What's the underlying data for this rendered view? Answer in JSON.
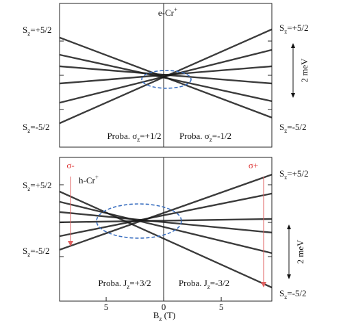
{
  "chart_data": [
    {
      "type": "line",
      "title": {
        "text": "e-Cr",
        "sup": "+"
      },
      "x": [
        -9.05,
        9.4
      ],
      "xlim": [
        -9.05,
        9.4
      ],
      "ylim": [
        -2.8,
        2.8
      ],
      "series": [
        {
          "color": "#1a1a1a",
          "values": [
            1.47,
            -1.65
          ]
        },
        {
          "color": "#1a1a1a",
          "values": [
            0.8,
            -1.01
          ]
        },
        {
          "color": "#1a1a1a",
          "values": [
            0.35,
            -0.32
          ]
        },
        {
          "color": "#1a1a1a",
          "values": [
            -0.32,
            0.35
          ]
        },
        {
          "color": "#1a1a1a",
          "values": [
            -1.07,
            0.99
          ]
        },
        {
          "color": "#1a1a1a",
          "values": [
            -1.87,
            1.79
          ]
        }
      ],
      "left_labels": [
        {
          "text": "S",
          "sub": "z",
          "tail": "=+5/2"
        },
        {
          "text": "S",
          "sub": "z",
          "tail": "=-5/2"
        }
      ],
      "right_labels": [
        {
          "text": "S",
          "sub": "z",
          "tail": "=+5/2"
        },
        {
          "text": "S",
          "sub": "z",
          "tail": "=-5/2"
        }
      ],
      "scale_label": "2 meV",
      "proba_labels": [
        {
          "text": "Proba. σ",
          "sub": "z",
          "tail": "=+1/2"
        },
        {
          "text": "Proba. σ",
          "sub": "z",
          "tail": "=-1/2"
        }
      ]
    },
    {
      "type": "line",
      "title": {
        "text": "h-Cr",
        "sup": "+"
      },
      "x": [
        -9.05,
        9.4
      ],
      "xlim": [
        -9.05,
        9.4
      ],
      "ylim": [
        -3.2,
        2.4
      ],
      "xticks": [
        {
          "value": -5,
          "label": "5"
        },
        0,
        5
      ],
      "x_label": {
        "text": "B",
        "sub": "z",
        "tail": " (T)"
      },
      "series": [
        {
          "color": "#1a1a1a",
          "values": [
            1.07,
            -2.67
          ]
        },
        {
          "color": "#1a1a1a",
          "values": [
            0.67,
            -1.33
          ]
        },
        {
          "color": "#1a1a1a",
          "values": [
            0.27,
            -0.53
          ]
        },
        {
          "color": "#1a1a1a",
          "values": [
            -0.13,
            0
          ]
        },
        {
          "color": "#1a1a1a",
          "values": [
            -0.67,
            0.99
          ]
        },
        {
          "color": "#1a1a1a",
          "values": [
            -1.2,
            1.73
          ]
        }
      ],
      "arrow_labels": [
        "σ-",
        "σ+"
      ],
      "left_labels": [
        {
          "text": "S",
          "sub": "z",
          "tail": "=+5/2"
        },
        {
          "text": "S",
          "sub": "z",
          "tail": "=-5/2"
        }
      ],
      "right_labels": [
        {
          "text": "S",
          "sub": "z",
          "tail": "=+5/2"
        },
        {
          "text": "S",
          "sub": "z",
          "tail": "=-5/2"
        }
      ],
      "scale_label": "2 meV",
      "proba_labels": [
        {
          "text": "Proba. J",
          "sub": "z",
          "tail": "=+3/2"
        },
        {
          "text": "Proba. J",
          "sub": "z",
          "tail": "=-3/2"
        }
      ]
    }
  ]
}
